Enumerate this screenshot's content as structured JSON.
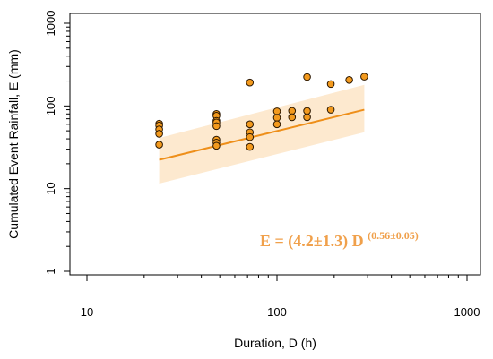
{
  "chart_data": {
    "type": "scatter",
    "xlabel": "Duration, D (h)",
    "ylabel": "Cumulated Event Rainfall, E (mm)",
    "xscale": "log",
    "yscale": "log",
    "xlim": [
      10,
      1000
    ],
    "ylim": [
      1,
      1000
    ],
    "xticks": [
      10,
      100,
      1000
    ],
    "xtick_labels": [
      "10",
      "100",
      "1000"
    ],
    "yticks": [
      1,
      10,
      100,
      1000
    ],
    "ytick_labels": [
      "1",
      "10",
      "100",
      "1000"
    ],
    "grid": false,
    "legend": "none",
    "points": [
      {
        "x": 24,
        "y": 61
      },
      {
        "x": 24,
        "y": 58
      },
      {
        "x": 24,
        "y": 52
      },
      {
        "x": 24,
        "y": 46
      },
      {
        "x": 24,
        "y": 34
      },
      {
        "x": 48,
        "y": 80
      },
      {
        "x": 48,
        "y": 76
      },
      {
        "x": 48,
        "y": 66
      },
      {
        "x": 48,
        "y": 63
      },
      {
        "x": 48,
        "y": 57
      },
      {
        "x": 48,
        "y": 39
      },
      {
        "x": 48,
        "y": 36
      },
      {
        "x": 48,
        "y": 33
      },
      {
        "x": 72,
        "y": 192
      },
      {
        "x": 72,
        "y": 60
      },
      {
        "x": 72,
        "y": 48
      },
      {
        "x": 72,
        "y": 42
      },
      {
        "x": 72,
        "y": 32
      },
      {
        "x": 100,
        "y": 86
      },
      {
        "x": 100,
        "y": 72
      },
      {
        "x": 100,
        "y": 60
      },
      {
        "x": 120,
        "y": 87
      },
      {
        "x": 120,
        "y": 73
      },
      {
        "x": 144,
        "y": 224
      },
      {
        "x": 144,
        "y": 87
      },
      {
        "x": 144,
        "y": 73
      },
      {
        "x": 192,
        "y": 184
      },
      {
        "x": 192,
        "y": 90
      },
      {
        "x": 240,
        "y": 206
      },
      {
        "x": 288,
        "y": 226
      }
    ],
    "fit_line": {
      "x_range": [
        24,
        288
      ],
      "y_range": [
        22.3,
        90
      ]
    },
    "confidence_band": {
      "x_range": [
        24,
        288
      ],
      "lower": [
        11.5,
        48
      ],
      "upper": [
        41,
        180
      ]
    },
    "annotation": {
      "prefix": "E = (4.2±1.3) D ",
      "exponent": "(0.56±0.05)"
    },
    "colors": {
      "point_fill": "#f39a1e",
      "point_stroke": "#2b1700",
      "fit_line": "#ee8f1a",
      "band": "#fde9cf",
      "annotation": "#f0a04b",
      "axis": "#000000"
    }
  }
}
